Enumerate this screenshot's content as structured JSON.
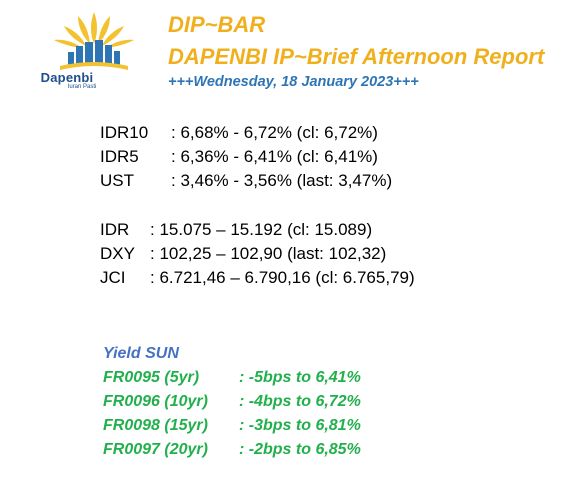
{
  "logo": {
    "brand": "Dapenbi",
    "tagline": "Iuran Pasti",
    "colors": {
      "rays": "#f2c230",
      "buildings": "#2e75b6",
      "text": "#1f4e8c"
    }
  },
  "header": {
    "title": "DIP~BAR",
    "subtitle": "DAPENBI IP~Brief Afternoon Report",
    "date": "+++Wednesday, 18 January 2023+++"
  },
  "rates": [
    {
      "label": "IDR10",
      "value": ": 6,68% - 6,72% (cl: 6,72%)"
    },
    {
      "label": "IDR5",
      "value": ": 6,36% - 6,41% (cl: 6,41%)"
    },
    {
      "label": "UST",
      "value": ": 3,46% - 3,56% (last: 3,47%)"
    }
  ],
  "fx": [
    {
      "label": "IDR",
      "value": ": 15.075 – 15.192 (cl: 15.089)"
    },
    {
      "label": "DXY",
      "value": ": 102,25 – 102,90 (last: 102,32)"
    },
    {
      "label": "JCI",
      "value": ": 6.721,46 – 6.790,16 (cl: 6.765,79)"
    }
  ],
  "yield_sun": {
    "title": "Yield SUN",
    "items": [
      {
        "code": "FR0095 (5yr)",
        "change": ": -5bps to 6,41%"
      },
      {
        "code": "FR0096 (10yr)",
        "change": ": -4bps to 6,72%"
      },
      {
        "code": "FR0098 (15yr)",
        "change": ": -3bps to 6,81%"
      },
      {
        "code": "FR0097 (20yr)",
        "change": ": -2bps to 6,85%"
      }
    ]
  },
  "colors": {
    "title": "#f0b01e",
    "date": "#2e75b6",
    "yield_title": "#4472c4",
    "yield_rows": "#22b04c"
  }
}
